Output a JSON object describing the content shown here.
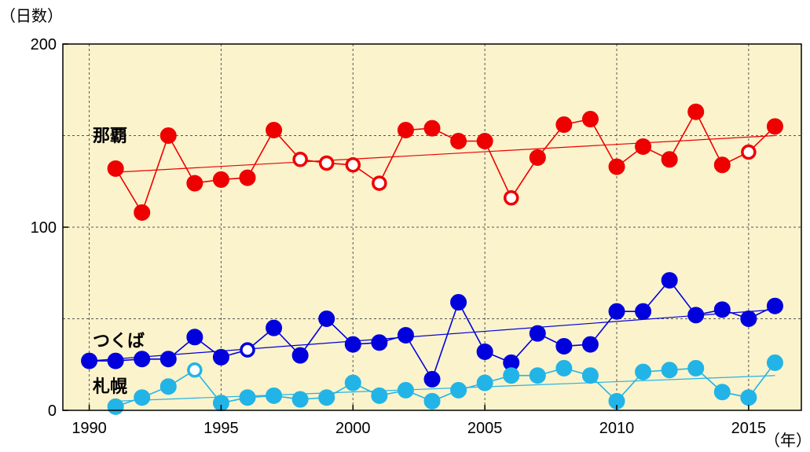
{
  "chart_data": {
    "type": "line",
    "ylabel": "（日数）",
    "xlabel": "（年）",
    "xlim": [
      1989,
      2017
    ],
    "ylim": [
      0,
      200
    ],
    "x_ticks": [
      1990,
      1995,
      2000,
      2005,
      2010,
      2015
    ],
    "y_ticks": [
      0,
      100,
      200
    ],
    "y_gridlines": [
      0,
      50,
      100,
      150,
      200
    ],
    "grid": true,
    "background": "#fbf3cc",
    "series": [
      {
        "name": "那覇",
        "color": "#ee0000",
        "x": [
          1991,
          1992,
          1993,
          1994,
          1995,
          1996,
          1997,
          1998,
          1999,
          2000,
          2001,
          2002,
          2003,
          2004,
          2005,
          2006,
          2007,
          2008,
          2009,
          2010,
          2011,
          2012,
          2013,
          2014,
          2015,
          2016
        ],
        "values": [
          132,
          108,
          150,
          124,
          126,
          127,
          153,
          137,
          135,
          134,
          124,
          153,
          154,
          147,
          147,
          116,
          138,
          156,
          159,
          133,
          144,
          137,
          163,
          134,
          141,
          155
        ],
        "open": [
          false,
          false,
          false,
          false,
          false,
          false,
          false,
          true,
          true,
          true,
          true,
          false,
          false,
          false,
          false,
          true,
          false,
          false,
          false,
          false,
          false,
          false,
          false,
          false,
          true,
          false
        ],
        "trend": [
          [
            1991,
            130
          ],
          [
            2016,
            150
          ]
        ]
      },
      {
        "name": "つくば",
        "color": "#0000dd",
        "x": [
          1990,
          1991,
          1992,
          1993,
          1994,
          1995,
          1996,
          1997,
          1998,
          1999,
          2000,
          2001,
          2002,
          2003,
          2004,
          2005,
          2006,
          2007,
          2008,
          2009,
          2010,
          2011,
          2012,
          2013,
          2014,
          2015,
          2016
        ],
        "values": [
          27,
          27,
          28,
          28,
          40,
          29,
          33,
          45,
          30,
          50,
          36,
          37,
          41,
          17,
          59,
          32,
          26,
          42,
          35,
          36,
          54,
          54,
          71,
          52,
          55,
          50,
          57
        ],
        "open": [
          false,
          false,
          false,
          false,
          false,
          false,
          true,
          false,
          false,
          false,
          false,
          false,
          false,
          false,
          false,
          false,
          false,
          false,
          false,
          false,
          false,
          false,
          false,
          false,
          false,
          false,
          false
        ],
        "trend": [
          [
            1990,
            27
          ],
          [
            2016,
            55
          ]
        ]
      },
      {
        "name": "札幌",
        "color": "#22b4e6",
        "x": [
          1991,
          1992,
          1993,
          1994,
          1995,
          1996,
          1997,
          1998,
          1999,
          2000,
          2001,
          2002,
          2003,
          2004,
          2005,
          2006,
          2007,
          2008,
          2009,
          2010,
          2011,
          2012,
          2013,
          2014,
          2015,
          2016
        ],
        "values": [
          2,
          7,
          13,
          22,
          4,
          7,
          8,
          6,
          7,
          15,
          8,
          11,
          5,
          11,
          15,
          19,
          19,
          23,
          19,
          5,
          21,
          22,
          23,
          10,
          7,
          26
        ],
        "open": [
          false,
          false,
          false,
          true,
          false,
          false,
          false,
          false,
          false,
          false,
          false,
          false,
          false,
          false,
          false,
          false,
          false,
          false,
          false,
          false,
          false,
          false,
          false,
          false,
          false,
          false
        ],
        "trend": [
          [
            1991,
            5
          ],
          [
            2016,
            19
          ]
        ]
      }
    ]
  }
}
